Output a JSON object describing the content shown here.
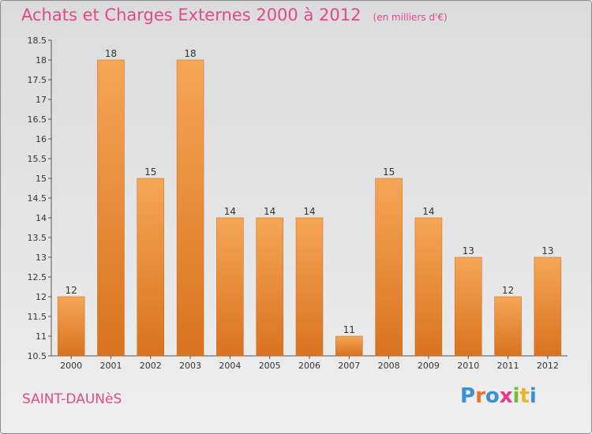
{
  "title": "Achats et Charges Externes 2000 à 2012",
  "subtitle": "(en milliers d'€)",
  "commune": "SAINT-DAUNèS",
  "logo": {
    "text": "Proxiti",
    "colors": [
      "#3a8fd6",
      "#e8732a",
      "#3a8fd6",
      "#e03c8a",
      "#7ab83a",
      "#e8b62a",
      "#3a8fd6"
    ]
  },
  "colors": {
    "title": "#e04a8a",
    "bar_top": "#f5a657",
    "bar_bottom": "#d8731f"
  },
  "chart_data": {
    "type": "bar",
    "categories": [
      "2000",
      "2001",
      "2002",
      "2003",
      "2004",
      "2005",
      "2006",
      "2007",
      "2008",
      "2009",
      "2010",
      "2011",
      "2012"
    ],
    "values": [
      12,
      18,
      15,
      18,
      14,
      14,
      14,
      11,
      15,
      14,
      13,
      12,
      13
    ],
    "data_labels": [
      "12",
      "18",
      "15",
      "18",
      "14",
      "14",
      "14",
      "11",
      "15",
      "14",
      "13",
      "12",
      "13"
    ],
    "yticks": [
      "10.5",
      "11",
      "11.5",
      "12",
      "12.5",
      "13",
      "13.5",
      "14",
      "14.5",
      "15",
      "15.5",
      "16",
      "16.5",
      "17",
      "17.5",
      "18",
      "18.5"
    ],
    "ylim": [
      10.5,
      18.5
    ],
    "grid": false,
    "legend": "none"
  }
}
